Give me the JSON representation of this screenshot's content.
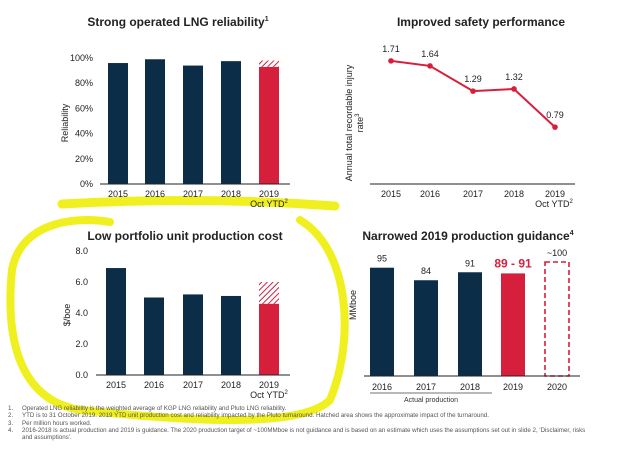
{
  "colors": {
    "navy": "#0c2d48",
    "red": "#d61f3b",
    "highlight": "#f0f020",
    "line": "#d61f3b",
    "axis": "#222222"
  },
  "charts": {
    "reliability": {
      "title": "Strong operated LNG reliability",
      "title_sup": "1",
      "ylabel": "Reliability",
      "yticks": [
        "100%",
        "80%",
        "60%",
        "40%",
        "20%",
        "0%"
      ],
      "oct_ytd": "Oct YTD",
      "oct_sup": "2"
    },
    "safety": {
      "title": "Improved safety performance",
      "ylabel1": "Annual total recordable injury",
      "ylabel2": "rate",
      "ylabel_sup": "3",
      "oct_ytd": "Oct YTD",
      "oct_sup": "2"
    },
    "unitcost": {
      "title": "Low portfolio unit production cost",
      "ylabel": "$/boe",
      "yticks": [
        "8.0",
        "6.0",
        "4.0",
        "2.0",
        "0.0"
      ],
      "oct_ytd": "Oct YTD",
      "oct_sup": "2"
    },
    "guidance": {
      "title": "Narrowed 2019 production guidance",
      "title_sup": "4",
      "ylabel": "MMboe",
      "actual_label": "Actual production"
    }
  },
  "chart_data": [
    {
      "type": "bar",
      "title": "Strong operated LNG reliability",
      "ylabel": "Reliability",
      "categories": [
        "2015",
        "2016",
        "2017",
        "2018",
        "2019"
      ],
      "values": [
        0.96,
        0.99,
        0.94,
        0.975,
        0.93
      ],
      "hatched_extra": [
        0,
        0,
        0,
        0,
        0.05
      ],
      "ylim": [
        0,
        1.0
      ],
      "highlight_index": 4
    },
    {
      "type": "line",
      "title": "Improved safety performance",
      "ylabel": "Annual total recordable injury rate",
      "categories": [
        "2015",
        "2016",
        "2017",
        "2018",
        "2019"
      ],
      "values": [
        1.71,
        1.64,
        1.29,
        1.32,
        0.79
      ],
      "value_labels": [
        "1.71",
        "1.64",
        "1.29",
        "1.32",
        "0.79"
      ],
      "ylim": [
        0,
        2.0
      ]
    },
    {
      "type": "bar",
      "title": "Low portfolio unit production cost",
      "ylabel": "$/boe",
      "categories": [
        "2015",
        "2016",
        "2017",
        "2018",
        "2019"
      ],
      "values": [
        6.9,
        5.0,
        5.2,
        5.1,
        4.6
      ],
      "hatched_extra": [
        0,
        0,
        0,
        0,
        1.4
      ],
      "ylim": [
        0,
        8.0
      ],
      "highlight_index": 4
    },
    {
      "type": "bar",
      "title": "Narrowed 2019 production guidance",
      "ylabel": "MMboe",
      "categories": [
        "2016",
        "2017",
        "2018",
        "2019",
        "2020"
      ],
      "values": [
        95,
        84,
        91,
        90,
        100
      ],
      "value_labels": [
        "95",
        "84",
        "91",
        "89 - 91",
        "~100"
      ],
      "styles": [
        "actual",
        "actual",
        "actual",
        "guidance",
        "target"
      ],
      "ylim": [
        0,
        100
      ]
    }
  ],
  "footnotes": [
    {
      "num": "1.",
      "text": "Operated LNG reliability is the weighted average of KGP LNG reliability and Pluto LNG reliability."
    },
    {
      "num": "2.",
      "text": "YTD is to 31 October 2019. 2019 YTD unit production cost and reliability impacted by the Pluto turnaround. Hatched area shows the approximate impact of the turnaround."
    },
    {
      "num": "3.",
      "text": "Per million hours worked."
    },
    {
      "num": "4.",
      "text": "2016-2018 is actual production and 2019 is guidance. The 2020 production target of ~100MMboe is not guidance and is based on an estimate which uses the assumptions set out in slide 2, 'Disclaimer, risks"
    },
    {
      "num": "",
      "text": "and assumptions'."
    }
  ]
}
